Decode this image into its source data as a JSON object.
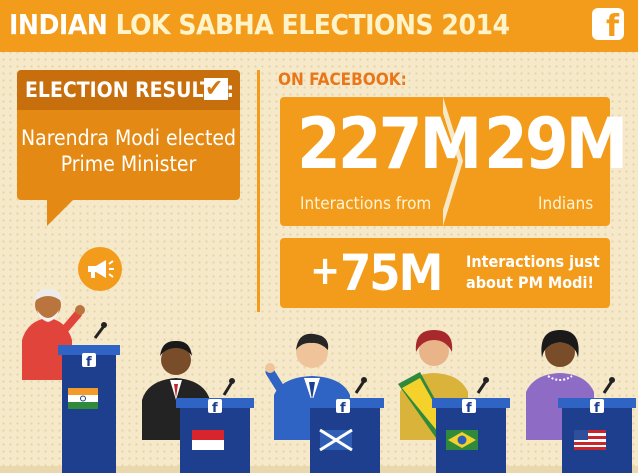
{
  "header": {
    "title_part1": "INDIAN",
    "title_part2": "LOK SABHA ELECTIONS 2014",
    "logo_letter": "f"
  },
  "results": {
    "heading": "ELECTION RESULTS:",
    "check_glyph": "✔",
    "line1": "Narendra Modi elected",
    "line2": "Prime Minister"
  },
  "facebook": {
    "section_label": "ON FACEBOOK:",
    "stat1_value": "227M",
    "stat1_label": "Interactions from",
    "stat2_value": "29M",
    "stat2_label": "Indians",
    "stat3_prefix": "+",
    "stat3_value": "75M",
    "stat3_line1": "Interactions just",
    "stat3_line2": "about PM Modi!"
  },
  "colors": {
    "orange": "#f39c1b",
    "dark_orange": "#c86f0d",
    "navy": "#1d3f8e",
    "background": "#f6e9c9"
  },
  "podiums": [
    {
      "flag": "India",
      "icon": "facebook-icon"
    },
    {
      "flag": "Indonesia",
      "icon": "facebook-icon"
    },
    {
      "flag": "Scotland",
      "icon": "facebook-icon"
    },
    {
      "flag": "Brazil",
      "icon": "facebook-icon"
    },
    {
      "flag": "USA",
      "icon": "facebook-icon"
    }
  ]
}
